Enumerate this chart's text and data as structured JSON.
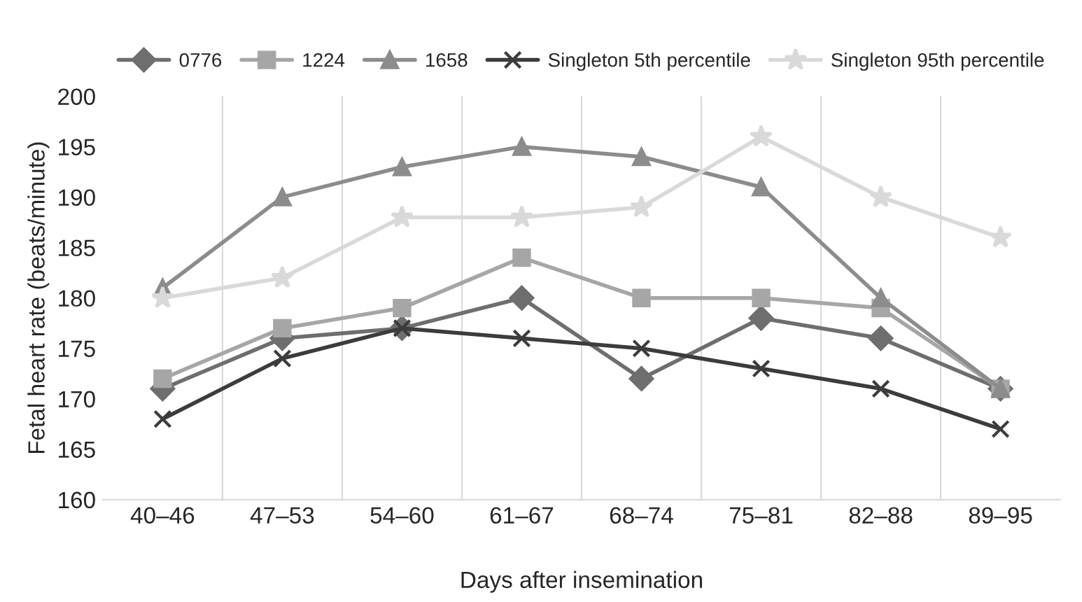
{
  "chart_data": {
    "type": "line",
    "xlabel": "Days after insemination",
    "ylabel": "Fetal heart rate (beats/minute)",
    "categories": [
      "40–46",
      "47–53",
      "54–60",
      "61–67",
      "68–74",
      "75–81",
      "82–88",
      "89–95"
    ],
    "series": [
      {
        "name": "0776",
        "color": "#6e6e6e",
        "marker": "diamond",
        "values": [
          171,
          176,
          177,
          180,
          172,
          178,
          176,
          171
        ]
      },
      {
        "name": "1224",
        "color": "#a6a6a6",
        "marker": "square",
        "values": [
          172,
          177,
          179,
          184,
          180,
          180,
          179,
          171
        ]
      },
      {
        "name": "1658",
        "color": "#8c8c8c",
        "marker": "triangle",
        "values": [
          181,
          190,
          193,
          195,
          194,
          191,
          180,
          171
        ]
      },
      {
        "name": "Singleton 5th percentile",
        "color": "#3c3c3c",
        "marker": "cross",
        "values": [
          168,
          174,
          177,
          176,
          175,
          173,
          171,
          167
        ]
      },
      {
        "name": "Singleton 95th percentile",
        "color": "#d9d9d9",
        "marker": "star",
        "values": [
          180,
          182,
          188,
          188,
          189,
          196,
          190,
          186
        ]
      }
    ],
    "ylim": [
      160,
      200
    ],
    "yticks": [
      160,
      165,
      170,
      175,
      180,
      185,
      190,
      195,
      200
    ],
    "grid": "x",
    "legend": "top",
    "line_style": "solid"
  }
}
